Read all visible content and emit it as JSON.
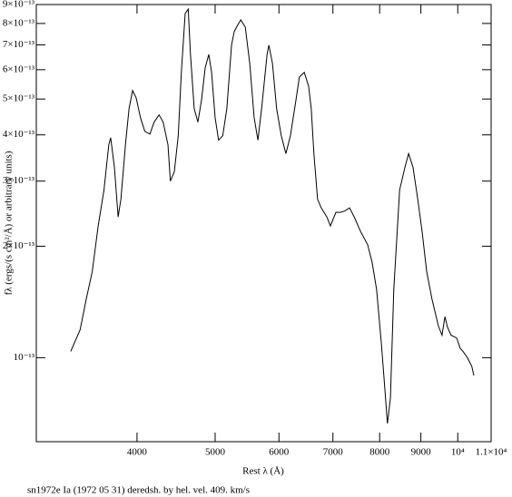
{
  "chart_data": {
    "type": "line",
    "caption": "sn1972e Ia (1972 05 31) deredsh. by hel. vel.   409. km/s",
    "x_label": "Rest λ (Å)",
    "y_label": "fλ (ergs/(s cm²/Å) or arbitrary units)",
    "xscale": "log",
    "yscale": "log",
    "xlim": [
      3000,
      11000
    ],
    "ylim": [
      5.93e-14,
      9e-13
    ],
    "xticks": [
      4000,
      5000,
      6000,
      7000,
      8000,
      9000,
      {
        "value": 10000,
        "label": "10⁴"
      },
      {
        "value": 11000,
        "label": "1.1×10⁴"
      }
    ],
    "yticks": [
      {
        "value": 1e-13,
        "label": "10⁻¹³"
      },
      {
        "value": 2e-13,
        "label": "2×10⁻¹³"
      },
      {
        "value": 3e-13,
        "label": "3×10⁻¹³"
      },
      {
        "value": 4e-13,
        "label": "4×10⁻¹³"
      },
      {
        "value": 5e-13,
        "label": "5×10⁻¹³"
      },
      {
        "value": 6e-13,
        "label": "6×10⁻¹³"
      },
      {
        "value": 7e-13,
        "label": "7×10⁻¹³"
      },
      {
        "value": 8e-13,
        "label": "8×10⁻¹³"
      },
      {
        "value": 9e-13,
        "label": "9×10⁻¹³"
      }
    ],
    "series": [
      {
        "color": "#000000",
        "x": [
          3310,
          3400,
          3460,
          3520,
          3580,
          3640,
          3690,
          3710,
          3750,
          3790,
          3820,
          3870,
          3910,
          3950,
          3990,
          4040,
          4090,
          4150,
          4200,
          4260,
          4310,
          4370,
          4400,
          4450,
          4500,
          4540,
          4590,
          4630,
          4660,
          4710,
          4760,
          4810,
          4860,
          4910,
          4950,
          5000,
          5050,
          5110,
          5170,
          5240,
          5280,
          5330,
          5380,
          5450,
          5520,
          5590,
          5650,
          5710,
          5800,
          5830,
          5890,
          5960,
          6040,
          6120,
          6200,
          6300,
          6360,
          6450,
          6530,
          6580,
          6630,
          6700,
          6770,
          6880,
          6950,
          7060,
          7150,
          7240,
          7340,
          7440,
          7570,
          7730,
          7830,
          7930,
          8040,
          8120,
          8180,
          8250,
          8330,
          8470,
          8600,
          8690,
          8800,
          8920,
          9030,
          9150,
          9290,
          9460,
          9560,
          9640,
          9710,
          9810,
          9970,
          10070,
          10150,
          10280,
          10410,
          10470
        ],
        "values": [
          1.04e-13,
          1.19e-13,
          1.44e-13,
          1.71e-13,
          2.27e-13,
          2.84e-13,
          3.76e-13,
          3.93e-13,
          3.27e-13,
          2.4e-13,
          2.68e-13,
          3.76e-13,
          4.71e-13,
          5.27e-13,
          5.04e-13,
          4.45e-13,
          4.09e-13,
          4.02e-13,
          4.33e-13,
          4.53e-13,
          4.33e-13,
          3.76e-13,
          3e-13,
          3.18e-13,
          3.98e-13,
          5.9e-13,
          8.51e-13,
          8.75e-13,
          6.6e-13,
          4.71e-13,
          4.33e-13,
          4.98e-13,
          6.07e-13,
          6.6e-13,
          5.9e-13,
          4.45e-13,
          3.87e-13,
          3.98e-13,
          4.71e-13,
          6.99e-13,
          7.6e-13,
          7.91e-13,
          8.18e-13,
          7.82e-13,
          6.24e-13,
          4.45e-13,
          3.87e-13,
          4.71e-13,
          6.6e-13,
          6.99e-13,
          6.24e-13,
          4.71e-13,
          3.98e-13,
          3.56e-13,
          3.98e-13,
          4.98e-13,
          5.73e-13,
          5.9e-13,
          5.42e-13,
          4.71e-13,
          3.56e-13,
          2.68e-13,
          2.54e-13,
          2.4e-13,
          2.27e-13,
          2.47e-13,
          2.47e-13,
          2.49e-13,
          2.54e-13,
          2.4e-13,
          2.2e-13,
          2.02e-13,
          1.81e-13,
          1.53e-13,
          1.09e-13,
          8.23e-14,
          6.64e-14,
          7.78e-14,
          1.53e-13,
          2.84e-13,
          3.27e-13,
          3.56e-13,
          3.27e-13,
          2.68e-13,
          2.2e-13,
          1.71e-13,
          1.44e-13,
          1.22e-13,
          1.15e-13,
          1.29e-13,
          1.21e-13,
          1.15e-13,
          1.13e-13,
          1.06e-13,
          1.04e-13,
          1e-13,
          9.47e-14,
          8.95e-14
        ]
      }
    ]
  }
}
